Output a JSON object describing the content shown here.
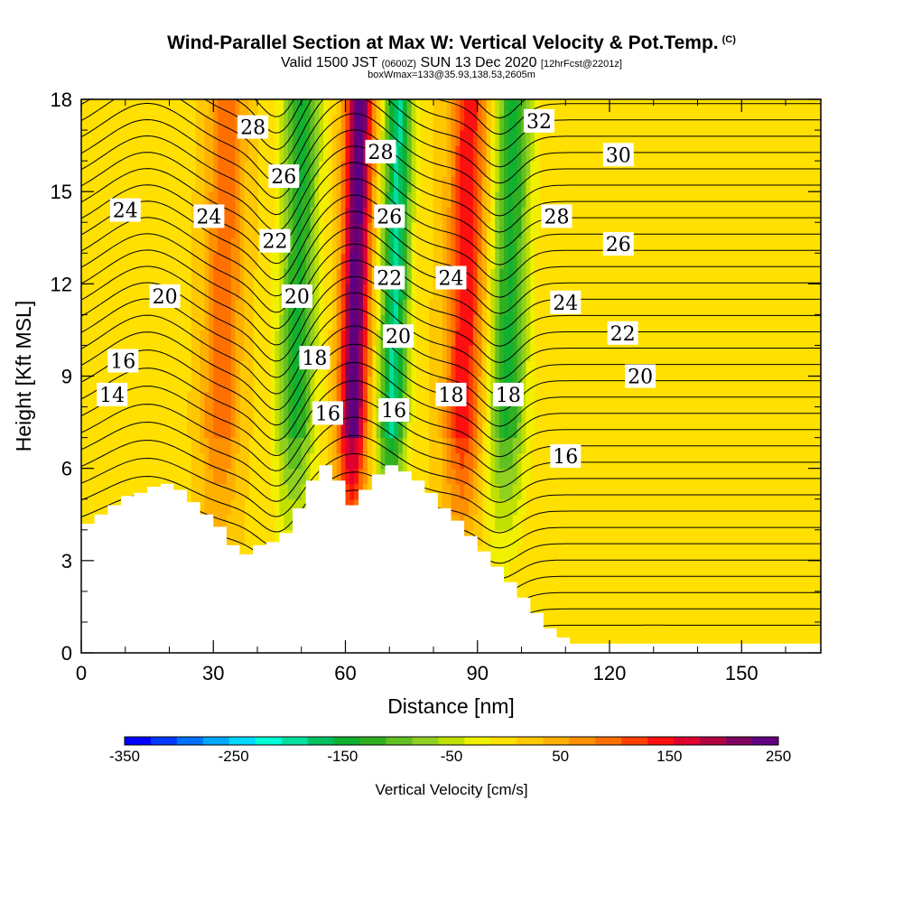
{
  "header": {
    "title": "Wind-Parallel Section at Max W: Vertical Velocity & Pot.Temp.",
    "title_unit": "(C)",
    "subtitle_valid": "Valid 1500 JST",
    "subtitle_utc": "(0600Z)",
    "subtitle_date": "SUN 13 Dec 2020",
    "subtitle_fcst": "[12hrFcst@2201z]",
    "subtitle_box": "boxWmax=133@35.93,138.53,2605m"
  },
  "chart_data": {
    "type": "contour-cross-section",
    "xlabel": "Distance [nm]",
    "ylabel": "Height [Kft MSL]",
    "xlim": [
      0,
      168
    ],
    "ylim": [
      0,
      18
    ],
    "x_ticks": [
      "0",
      "30",
      "60",
      "90",
      "120",
      "150"
    ],
    "y_ticks": [
      "0",
      "3",
      "6",
      "9",
      "12",
      "15",
      "18"
    ],
    "colorbar": {
      "title": "Vertical Velocity [cm/s]",
      "min": -350,
      "max": 250,
      "step": 25,
      "tick_labels": [
        "-350",
        "-250",
        "-150",
        "-50",
        "50",
        "150",
        "250"
      ],
      "colors": [
        "#0000ff",
        "#0038ff",
        "#0070ff",
        "#00a8ff",
        "#00d8ff",
        "#00ffd8",
        "#00e0a0",
        "#00c060",
        "#10b030",
        "#30b020",
        "#60c020",
        "#90d020",
        "#c0e000",
        "#f0f000",
        "#ffe000",
        "#ffc800",
        "#ffb000",
        "#ff9000",
        "#ff7000",
        "#ff4000",
        "#ff1010",
        "#e00030",
        "#b00040",
        "#800060",
        "#600080"
      ]
    },
    "terrain_profile_kft": [
      [
        0,
        4.2
      ],
      [
        3,
        4.5
      ],
      [
        6,
        4.8
      ],
      [
        9,
        5.1
      ],
      [
        12,
        5.2
      ],
      [
        15,
        5.4
      ],
      [
        18,
        5.5
      ],
      [
        21,
        5.3
      ],
      [
        24,
        4.9
      ],
      [
        27,
        4.5
      ],
      [
        30,
        4.1
      ],
      [
        33,
        3.5
      ],
      [
        36,
        3.2
      ],
      [
        39,
        3.5
      ],
      [
        42,
        3.6
      ],
      [
        45,
        3.9
      ],
      [
        48,
        4.7
      ],
      [
        51,
        5.6
      ],
      [
        54,
        6.1
      ],
      [
        57,
        5.6
      ],
      [
        60,
        4.8
      ],
      [
        63,
        5.3
      ],
      [
        66,
        5.8
      ],
      [
        69,
        6.1
      ],
      [
        72,
        5.9
      ],
      [
        75,
        5.6
      ],
      [
        78,
        5.2
      ],
      [
        81,
        4.7
      ],
      [
        84,
        4.3
      ],
      [
        87,
        3.8
      ],
      [
        90,
        3.3
      ],
      [
        93,
        2.8
      ],
      [
        96,
        2.3
      ],
      [
        99,
        1.8
      ],
      [
        102,
        1.3
      ],
      [
        105,
        0.8
      ],
      [
        108,
        0.5
      ],
      [
        111,
        0.3
      ],
      [
        168,
        0.3
      ]
    ],
    "updraft_cores": [
      {
        "x_nm": 62,
        "w_cm_s": 250
      },
      {
        "x_nm": 87,
        "w_cm_s": 150
      },
      {
        "x_nm": 32,
        "w_cm_s": 100
      }
    ],
    "downdraft_cores": [
      {
        "x_nm": 49,
        "w_cm_s": -150
      },
      {
        "x_nm": 71,
        "w_cm_s": -200
      },
      {
        "x_nm": 97,
        "w_cm_s": -150
      }
    ],
    "theta_contour_labels": [
      {
        "text": "28",
        "x_nm": 39,
        "y_kft": 17.1
      },
      {
        "text": "26",
        "x_nm": 46,
        "y_kft": 15.5
      },
      {
        "text": "24",
        "x_nm": 10,
        "y_kft": 14.4
      },
      {
        "text": "24",
        "x_nm": 29,
        "y_kft": 14.2
      },
      {
        "text": "22",
        "x_nm": 44,
        "y_kft": 13.4
      },
      {
        "text": "20",
        "x_nm": 19,
        "y_kft": 11.6
      },
      {
        "text": "20",
        "x_nm": 49,
        "y_kft": 11.6
      },
      {
        "text": "16",
        "x_nm": 9.5,
        "y_kft": 9.5
      },
      {
        "text": "18",
        "x_nm": 53,
        "y_kft": 9.6
      },
      {
        "text": "14",
        "x_nm": 7,
        "y_kft": 8.4
      },
      {
        "text": "16",
        "x_nm": 56,
        "y_kft": 7.8
      },
      {
        "text": "28",
        "x_nm": 68,
        "y_kft": 16.3
      },
      {
        "text": "26",
        "x_nm": 70,
        "y_kft": 14.2
      },
      {
        "text": "22",
        "x_nm": 70,
        "y_kft": 12.2
      },
      {
        "text": "20",
        "x_nm": 72,
        "y_kft": 10.3
      },
      {
        "text": "16",
        "x_nm": 71,
        "y_kft": 7.9
      },
      {
        "text": "24",
        "x_nm": 84,
        "y_kft": 12.2
      },
      {
        "text": "18",
        "x_nm": 84,
        "y_kft": 8.4
      },
      {
        "text": "18",
        "x_nm": 97,
        "y_kft": 8.4
      },
      {
        "text": "32",
        "x_nm": 104,
        "y_kft": 17.3
      },
      {
        "text": "30",
        "x_nm": 122,
        "y_kft": 16.2
      },
      {
        "text": "28",
        "x_nm": 108,
        "y_kft": 14.2
      },
      {
        "text": "26",
        "x_nm": 122,
        "y_kft": 13.3
      },
      {
        "text": "24",
        "x_nm": 110,
        "y_kft": 11.4
      },
      {
        "text": "22",
        "x_nm": 123,
        "y_kft": 10.4
      },
      {
        "text": "20",
        "x_nm": 127,
        "y_kft": 9.0
      },
      {
        "text": "16",
        "x_nm": 110,
        "y_kft": 6.4
      }
    ]
  }
}
